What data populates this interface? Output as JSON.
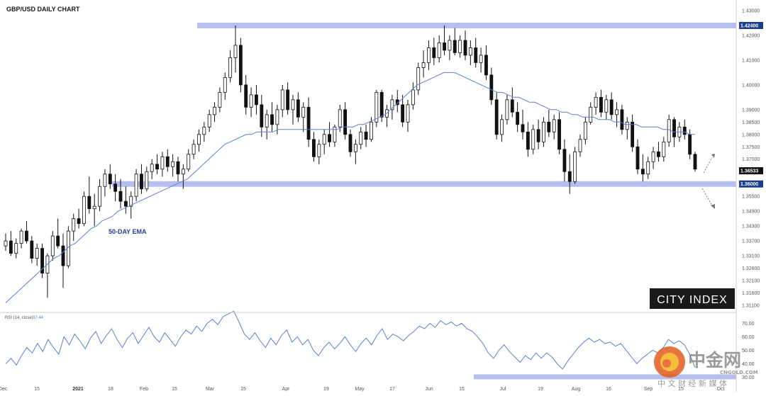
{
  "chart_data": {
    "type": "candlestick",
    "title": "GBP/USD DAILY CHART",
    "ema_label": "50-DAY EMA",
    "rsi_label": "RSI (14, close)",
    "rsi_value": "37.44",
    "x_ticks": [
      "Dec",
      "15",
      "2021",
      "18",
      "Feb",
      "15",
      "Mar",
      "15",
      "Apr",
      "19",
      "May",
      "17",
      "Jun",
      "15",
      "Jul",
      "19",
      "Aug",
      "16",
      "Sep",
      "15",
      "Oct"
    ],
    "price_ticks": [
      "1.43000",
      "1.42000",
      "1.41000",
      "1.40000",
      "1.39000",
      "1.38500",
      "1.38000",
      "1.37500",
      "1.37000",
      "1.35500",
      "1.34900",
      "1.34300",
      "1.33700",
      "1.33100",
      "1.32600",
      "1.32100",
      "1.31600",
      "1.31100"
    ],
    "rsi_ticks": [
      "70.00",
      "60.00",
      "50.00",
      "40.00",
      "30.00"
    ],
    "levels": [
      {
        "label": "1.42400",
        "value": 1.424
      },
      {
        "label": "1.36000",
        "value": 1.36
      }
    ],
    "last_price": {
      "label": "1.36533",
      "value": 1.36533
    },
    "ylim": [
      1.309,
      1.432
    ],
    "rsi_ylim": [
      26,
      76
    ],
    "colors": {
      "up": "#ffffff",
      "down": "#111111",
      "ema": "#5b7fd1",
      "rsi": "#5b7fd1",
      "zone": "#aab3e8",
      "badge": "#1c3d8f"
    },
    "ema": [
      1.312,
      1.314,
      1.316,
      1.318,
      1.32,
      1.322,
      1.324,
      1.326,
      1.328,
      1.33,
      1.331,
      1.333,
      1.335,
      1.336,
      1.338,
      1.34,
      1.342,
      1.343,
      1.345,
      1.346,
      1.347,
      1.349,
      1.35,
      1.351,
      1.352,
      1.353,
      1.354,
      1.355,
      1.356,
      1.357,
      1.358,
      1.359,
      1.36,
      1.361,
      1.362,
      1.364,
      1.366,
      1.368,
      1.37,
      1.372,
      1.374,
      1.376,
      1.377,
      1.378,
      1.379,
      1.38,
      1.38,
      1.381,
      1.381,
      1.381,
      1.381,
      1.382,
      1.382,
      1.382,
      1.382,
      1.382,
      1.382,
      1.382,
      1.382,
      1.382,
      1.382,
      1.382,
      1.382,
      1.383,
      1.383,
      1.383,
      1.384,
      1.384,
      1.385,
      1.386,
      1.387,
      1.388,
      1.39,
      1.392,
      1.394,
      1.396,
      1.398,
      1.4,
      1.401,
      1.402,
      1.403,
      1.404,
      1.405,
      1.405,
      1.405,
      1.404,
      1.403,
      1.402,
      1.401,
      1.4,
      1.399,
      1.398,
      1.397,
      1.397,
      1.396,
      1.395,
      1.395,
      1.394,
      1.393,
      1.393,
      1.392,
      1.391,
      1.39,
      1.39,
      1.389,
      1.389,
      1.388,
      1.388,
      1.387,
      1.387,
      1.387,
      1.386,
      1.386,
      1.386,
      1.385,
      1.385,
      1.384,
      1.384,
      1.384,
      1.383,
      1.383,
      1.383,
      1.383,
      1.382,
      1.382,
      1.381,
      1.381,
      1.381,
      1.38,
      1.38
    ],
    "candles": [
      [
        1.335,
        1.34,
        1.333,
        1.337
      ],
      [
        1.337,
        1.341,
        1.331,
        1.332
      ],
      [
        1.332,
        1.338,
        1.33,
        1.336
      ],
      [
        1.336,
        1.342,
        1.334,
        1.341
      ],
      [
        1.341,
        1.345,
        1.336,
        1.337
      ],
      [
        1.337,
        1.339,
        1.328,
        1.33
      ],
      [
        1.33,
        1.336,
        1.327,
        1.334
      ],
      [
        1.334,
        1.336,
        1.322,
        1.324
      ],
      [
        1.324,
        1.332,
        1.314,
        1.331
      ],
      [
        1.331,
        1.341,
        1.329,
        1.339
      ],
      [
        1.339,
        1.346,
        1.334,
        1.335
      ],
      [
        1.335,
        1.34,
        1.318,
        1.327
      ],
      [
        1.327,
        1.343,
        1.326,
        1.341
      ],
      [
        1.341,
        1.348,
        1.337,
        1.346
      ],
      [
        1.346,
        1.35,
        1.342,
        1.344
      ],
      [
        1.344,
        1.357,
        1.343,
        1.355
      ],
      [
        1.355,
        1.363,
        1.348,
        1.35
      ],
      [
        1.35,
        1.356,
        1.343,
        1.351
      ],
      [
        1.351,
        1.362,
        1.349,
        1.359
      ],
      [
        1.359,
        1.366,
        1.355,
        1.364
      ],
      [
        1.364,
        1.368,
        1.358,
        1.36
      ],
      [
        1.36,
        1.364,
        1.353,
        1.357
      ],
      [
        1.357,
        1.362,
        1.35,
        1.353
      ],
      [
        1.353,
        1.359,
        1.348,
        1.351
      ],
      [
        1.351,
        1.357,
        1.346,
        1.355
      ],
      [
        1.355,
        1.366,
        1.353,
        1.364
      ],
      [
        1.364,
        1.368,
        1.356,
        1.358
      ],
      [
        1.358,
        1.367,
        1.357,
        1.365
      ],
      [
        1.365,
        1.37,
        1.362,
        1.368
      ],
      [
        1.368,
        1.372,
        1.364,
        1.366
      ],
      [
        1.366,
        1.373,
        1.363,
        1.371
      ],
      [
        1.371,
        1.374,
        1.365,
        1.367
      ],
      [
        1.367,
        1.372,
        1.363,
        1.369
      ],
      [
        1.369,
        1.371,
        1.361,
        1.364
      ],
      [
        1.364,
        1.368,
        1.358,
        1.366
      ],
      [
        1.366,
        1.374,
        1.365,
        1.372
      ],
      [
        1.372,
        1.378,
        1.37,
        1.376
      ],
      [
        1.376,
        1.382,
        1.373,
        1.38
      ],
      [
        1.38,
        1.385,
        1.377,
        1.383
      ],
      [
        1.383,
        1.39,
        1.381,
        1.388
      ],
      [
        1.388,
        1.393,
        1.385,
        1.391
      ],
      [
        1.391,
        1.399,
        1.389,
        1.397
      ],
      [
        1.397,
        1.405,
        1.394,
        1.403
      ],
      [
        1.403,
        1.414,
        1.401,
        1.411
      ],
      [
        1.411,
        1.424,
        1.405,
        1.416
      ],
      [
        1.416,
        1.419,
        1.397,
        1.4
      ],
      [
        1.4,
        1.404,
        1.388,
        1.391
      ],
      [
        1.391,
        1.399,
        1.387,
        1.396
      ],
      [
        1.396,
        1.4,
        1.388,
        1.392
      ],
      [
        1.392,
        1.396,
        1.379,
        1.383
      ],
      [
        1.383,
        1.39,
        1.378,
        1.388
      ],
      [
        1.388,
        1.393,
        1.381,
        1.384
      ],
      [
        1.384,
        1.392,
        1.38,
        1.39
      ],
      [
        1.39,
        1.4,
        1.387,
        1.398
      ],
      [
        1.398,
        1.401,
        1.388,
        1.39
      ],
      [
        1.39,
        1.396,
        1.384,
        1.394
      ],
      [
        1.394,
        1.397,
        1.385,
        1.387
      ],
      [
        1.387,
        1.393,
        1.381,
        1.391
      ],
      [
        1.391,
        1.395,
        1.375,
        1.378
      ],
      [
        1.378,
        1.381,
        1.369,
        1.371
      ],
      [
        1.371,
        1.378,
        1.368,
        1.376
      ],
      [
        1.376,
        1.382,
        1.372,
        1.38
      ],
      [
        1.38,
        1.385,
        1.375,
        1.377
      ],
      [
        1.377,
        1.384,
        1.375,
        1.383
      ],
      [
        1.383,
        1.392,
        1.381,
        1.39
      ],
      [
        1.39,
        1.393,
        1.378,
        1.38
      ],
      [
        1.38,
        1.382,
        1.371,
        1.373
      ],
      [
        1.373,
        1.378,
        1.368,
        1.376
      ],
      [
        1.376,
        1.383,
        1.374,
        1.381
      ],
      [
        1.381,
        1.384,
        1.375,
        1.378
      ],
      [
        1.378,
        1.387,
        1.377,
        1.385
      ],
      [
        1.385,
        1.398,
        1.383,
        1.397
      ],
      [
        1.397,
        1.398,
        1.385,
        1.387
      ],
      [
        1.387,
        1.392,
        1.383,
        1.39
      ],
      [
        1.39,
        1.396,
        1.386,
        1.394
      ],
      [
        1.394,
        1.398,
        1.389,
        1.392
      ],
      [
        1.392,
        1.396,
        1.383,
        1.385
      ],
      [
        1.385,
        1.394,
        1.381,
        1.392
      ],
      [
        1.392,
        1.401,
        1.39,
        1.398
      ],
      [
        1.398,
        1.409,
        1.396,
        1.407
      ],
      [
        1.407,
        1.414,
        1.403,
        1.409
      ],
      [
        1.409,
        1.418,
        1.406,
        1.415
      ],
      [
        1.415,
        1.419,
        1.408,
        1.411
      ],
      [
        1.411,
        1.42,
        1.409,
        1.417
      ],
      [
        1.417,
        1.424,
        1.412,
        1.414
      ],
      [
        1.414,
        1.42,
        1.41,
        1.418
      ],
      [
        1.418,
        1.423,
        1.412,
        1.413
      ],
      [
        1.413,
        1.42,
        1.411,
        1.418
      ],
      [
        1.418,
        1.422,
        1.41,
        1.412
      ],
      [
        1.412,
        1.418,
        1.408,
        1.415
      ],
      [
        1.415,
        1.419,
        1.407,
        1.409
      ],
      [
        1.409,
        1.415,
        1.405,
        1.412
      ],
      [
        1.412,
        1.416,
        1.402,
        1.404
      ],
      [
        1.404,
        1.407,
        1.392,
        1.394
      ],
      [
        1.394,
        1.397,
        1.378,
        1.38
      ],
      [
        1.38,
        1.388,
        1.377,
        1.386
      ],
      [
        1.386,
        1.396,
        1.384,
        1.394
      ],
      [
        1.394,
        1.399,
        1.387,
        1.389
      ],
      [
        1.389,
        1.393,
        1.381,
        1.384
      ],
      [
        1.384,
        1.39,
        1.378,
        1.381
      ],
      [
        1.381,
        1.385,
        1.371,
        1.374
      ],
      [
        1.374,
        1.384,
        1.372,
        1.382
      ],
      [
        1.382,
        1.386,
        1.374,
        1.377
      ],
      [
        1.377,
        1.387,
        1.375,
        1.385
      ],
      [
        1.385,
        1.39,
        1.379,
        1.381
      ],
      [
        1.381,
        1.388,
        1.378,
        1.386
      ],
      [
        1.386,
        1.389,
        1.372,
        1.374
      ],
      [
        1.374,
        1.378,
        1.361,
        1.365
      ],
      [
        1.365,
        1.372,
        1.356,
        1.361
      ],
      [
        1.361,
        1.375,
        1.36,
        1.373
      ],
      [
        1.373,
        1.38,
        1.371,
        1.378
      ],
      [
        1.378,
        1.387,
        1.376,
        1.385
      ],
      [
        1.385,
        1.393,
        1.384,
        1.391
      ],
      [
        1.391,
        1.397,
        1.388,
        1.395
      ],
      [
        1.395,
        1.398,
        1.387,
        1.389
      ],
      [
        1.389,
        1.396,
        1.386,
        1.394
      ],
      [
        1.394,
        1.397,
        1.386,
        1.388
      ],
      [
        1.388,
        1.393,
        1.383,
        1.39
      ],
      [
        1.39,
        1.392,
        1.38,
        1.382
      ],
      [
        1.382,
        1.387,
        1.378,
        1.385
      ],
      [
        1.385,
        1.388,
        1.373,
        1.375
      ],
      [
        1.375,
        1.378,
        1.364,
        1.366
      ],
      [
        1.366,
        1.372,
        1.361,
        1.364
      ],
      [
        1.364,
        1.371,
        1.362,
        1.369
      ],
      [
        1.369,
        1.375,
        1.366,
        1.373
      ],
      [
        1.373,
        1.377,
        1.369,
        1.371
      ],
      [
        1.371,
        1.379,
        1.369,
        1.377
      ],
      [
        1.377,
        1.388,
        1.375,
        1.386
      ],
      [
        1.386,
        1.387,
        1.375,
        1.379
      ],
      [
        1.379,
        1.385,
        1.377,
        1.383
      ],
      [
        1.383,
        1.386,
        1.378,
        1.38
      ],
      [
        1.38,
        1.382,
        1.37,
        1.372
      ],
      [
        1.372,
        1.373,
        1.365,
        1.366
      ]
    ],
    "rsi": [
      40,
      44,
      39,
      46,
      52,
      48,
      55,
      49,
      58,
      52,
      47,
      60,
      54,
      62,
      57,
      51,
      59,
      64,
      55,
      61,
      66,
      58,
      52,
      59,
      63,
      55,
      61,
      67,
      60,
      56,
      63,
      58,
      53,
      60,
      65,
      62,
      68,
      64,
      70,
      73,
      69,
      75,
      77,
      79,
      71,
      62,
      58,
      63,
      57,
      52,
      59,
      54,
      61,
      65,
      56,
      60,
      54,
      58,
      50,
      46,
      52,
      56,
      51,
      55,
      60,
      54,
      49,
      55,
      59,
      54,
      61,
      66,
      58,
      62,
      60,
      57,
      61,
      64,
      68,
      66,
      70,
      67,
      72,
      69,
      71,
      68,
      70,
      66,
      64,
      60,
      55,
      48,
      44,
      50,
      54,
      49,
      45,
      41,
      46,
      43,
      48,
      44,
      48,
      45,
      40,
      36,
      42,
      47,
      52,
      56,
      59,
      56,
      58,
      55,
      56,
      53,
      55,
      50,
      45,
      40,
      44,
      47,
      50,
      48,
      52,
      58,
      55,
      57,
      54,
      47,
      37
    ]
  },
  "logo": {
    "text": "CITY INDEX"
  },
  "watermark": {
    "big": "中金网",
    "domain": "CNGOLD.COM",
    "sub": "中 文 财 经 新 媒 体"
  }
}
